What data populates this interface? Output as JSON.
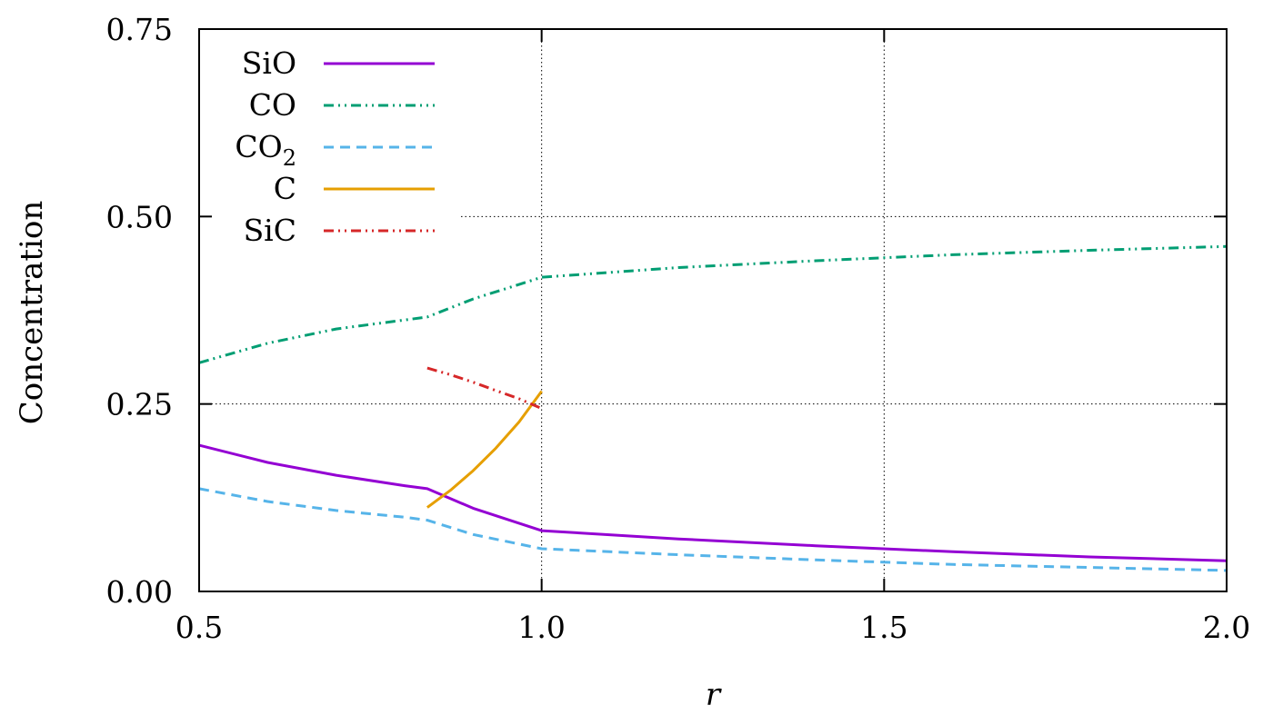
{
  "chart_data": {
    "type": "line",
    "xlabel": "r",
    "ylabel": "Concentration",
    "xlim": [
      0.5,
      2.0
    ],
    "ylim": [
      0.0,
      0.75
    ],
    "xticks": [
      "0.5",
      "1.0",
      "1.5",
      "2.0"
    ],
    "yticks": [
      "0.00",
      "0.25",
      "0.50",
      "0.75"
    ],
    "xtick_values": [
      0.5,
      1.0,
      1.5,
      2.0
    ],
    "ytick_values": [
      0.0,
      0.25,
      0.5,
      0.75
    ],
    "grid": true,
    "legend_position": "top-left",
    "series": [
      {
        "name": "SiO",
        "color": "#9400d3",
        "dash": "solid",
        "x": [
          0.5,
          0.6,
          0.7,
          0.8,
          0.833,
          0.9,
          1.0,
          1.2,
          1.4,
          1.6,
          1.8,
          2.0
        ],
        "y": [
          0.195,
          0.172,
          0.155,
          0.141,
          0.137,
          0.111,
          0.081,
          0.07,
          0.061,
          0.053,
          0.046,
          0.041
        ]
      },
      {
        "name": "CO",
        "color": "#009e73",
        "dash": "dash-dot-dot",
        "x": [
          0.5,
          0.6,
          0.7,
          0.8,
          0.833,
          0.9,
          1.0,
          1.2,
          1.4,
          1.6,
          1.8,
          2.0
        ],
        "y": [
          0.305,
          0.331,
          0.35,
          0.362,
          0.366,
          0.39,
          0.419,
          0.432,
          0.441,
          0.449,
          0.455,
          0.46
        ]
      },
      {
        "name": "CO",
        "name_subscript": "2",
        "color": "#56b4e9",
        "dash": "dashed",
        "x": [
          0.5,
          0.6,
          0.7,
          0.8,
          0.833,
          0.9,
          1.0,
          1.2,
          1.4,
          1.6,
          1.8,
          2.0
        ],
        "y": [
          0.137,
          0.12,
          0.108,
          0.099,
          0.095,
          0.076,
          0.057,
          0.049,
          0.042,
          0.036,
          0.032,
          0.028
        ]
      },
      {
        "name": "C",
        "color": "#e69f00",
        "dash": "solid",
        "x": [
          0.833,
          0.867,
          0.9,
          0.933,
          0.967,
          1.0
        ],
        "y": [
          0.112,
          0.135,
          0.161,
          0.191,
          0.226,
          0.267
        ]
      },
      {
        "name": "SiC",
        "color": "#d62728",
        "dash": "dash-dot-dot",
        "x": [
          0.833,
          0.867,
          0.9,
          0.933,
          0.967,
          1.0
        ],
        "y": [
          0.298,
          0.289,
          0.279,
          0.268,
          0.257,
          0.244
        ]
      }
    ]
  }
}
